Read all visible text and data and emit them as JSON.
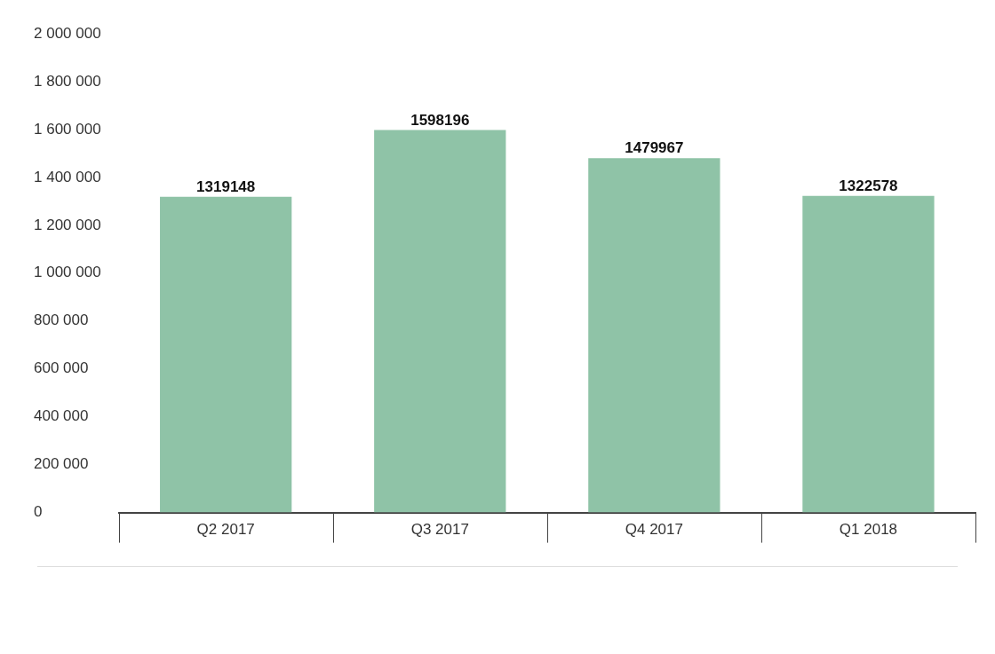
{
  "chart_data": {
    "type": "bar",
    "categories": [
      "Q2 2017",
      "Q3 2017",
      "Q4 2017",
      "Q1 2018"
    ],
    "values": [
      1319148,
      1598196,
      1479967,
      1322578
    ],
    "color": "#8fc3a7",
    "ylim": [
      0,
      2000000
    ],
    "yticks": [
      {
        "value": 0,
        "label": "0"
      },
      {
        "value": 200000,
        "label": "200 000"
      },
      {
        "value": 400000,
        "label": "400 000"
      },
      {
        "value": 600000,
        "label": "600 000"
      },
      {
        "value": 800000,
        "label": "800 000"
      },
      {
        "value": 1000000,
        "label": "1 000 000"
      },
      {
        "value": 1200000,
        "label": "1 200 000"
      },
      {
        "value": 1400000,
        "label": "1 400 000"
      },
      {
        "value": 1600000,
        "label": "1 600 000"
      },
      {
        "value": 1800000,
        "label": "1 800 000"
      },
      {
        "value": 2000000,
        "label": "2 000 000"
      }
    ],
    "grid": false,
    "legend": false,
    "data_labels": true
  }
}
